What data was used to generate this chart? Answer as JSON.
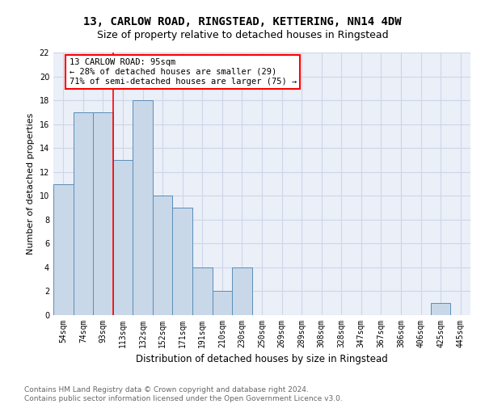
{
  "title1": "13, CARLOW ROAD, RINGSTEAD, KETTERING, NN14 4DW",
  "title2": "Size of property relative to detached houses in Ringstead",
  "xlabel": "Distribution of detached houses by size in Ringstead",
  "ylabel": "Number of detached properties",
  "categories": [
    "54sqm",
    "74sqm",
    "93sqm",
    "113sqm",
    "132sqm",
    "152sqm",
    "171sqm",
    "191sqm",
    "210sqm",
    "230sqm",
    "250sqm",
    "269sqm",
    "289sqm",
    "308sqm",
    "328sqm",
    "347sqm",
    "367sqm",
    "386sqm",
    "406sqm",
    "425sqm",
    "445sqm"
  ],
  "values": [
    11,
    17,
    17,
    13,
    18,
    10,
    9,
    4,
    2,
    4,
    0,
    0,
    0,
    0,
    0,
    0,
    0,
    0,
    0,
    1,
    0
  ],
  "bar_color": "#c8d8e8",
  "bar_edge_color": "#5b8db8",
  "annotation_line1": "13 CARLOW ROAD: 95sqm",
  "annotation_line2": "← 28% of detached houses are smaller (29)",
  "annotation_line3": "71% of semi-detached houses are larger (75) →",
  "red_line_x": 2.5,
  "ylim": [
    0,
    22
  ],
  "yticks": [
    0,
    2,
    4,
    6,
    8,
    10,
    12,
    14,
    16,
    18,
    20,
    22
  ],
  "grid_color": "#cdd6e8",
  "bg_color": "#eaeff8",
  "footer_text": "Contains HM Land Registry data © Crown copyright and database right 2024.\nContains public sector information licensed under the Open Government Licence v3.0.",
  "title1_fontsize": 10,
  "title2_fontsize": 9,
  "xlabel_fontsize": 8.5,
  "ylabel_fontsize": 8,
  "tick_fontsize": 7,
  "annotation_fontsize": 7.5,
  "footer_fontsize": 6.5
}
